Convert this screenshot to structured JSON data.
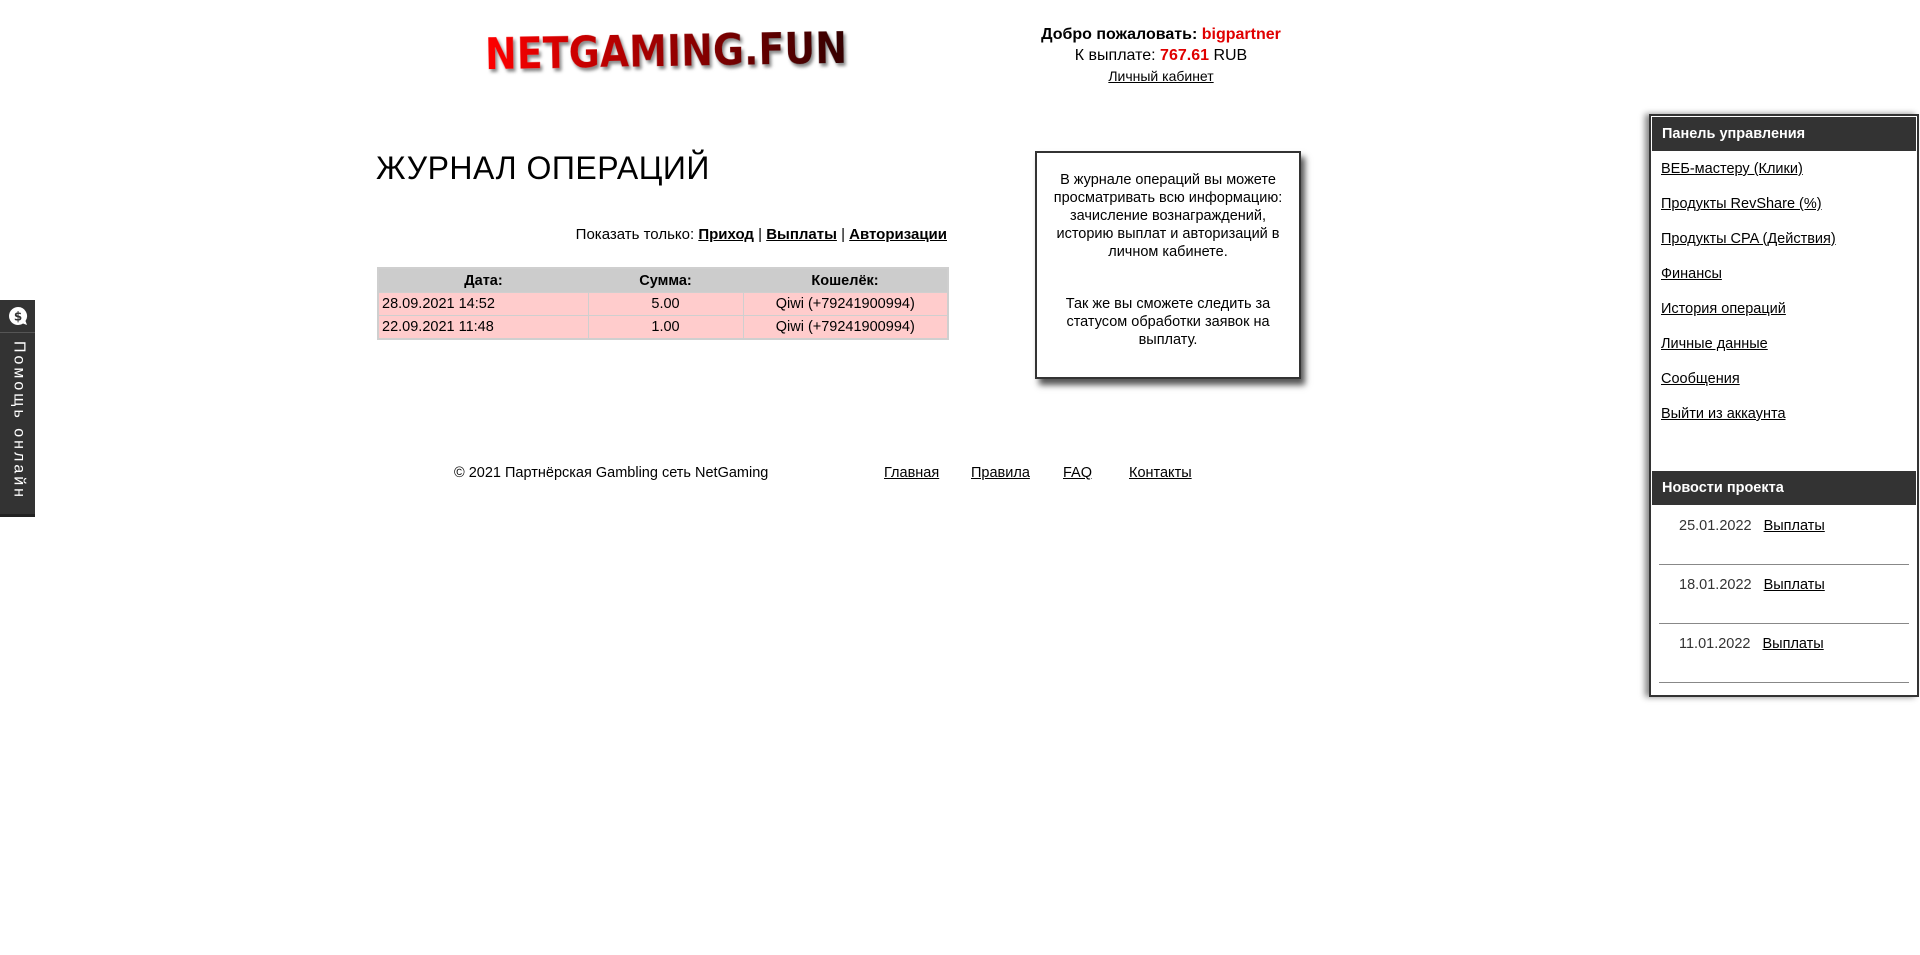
{
  "header": {
    "logo_text": "NETGAMING.FUN",
    "welcome_label": "Добро пожаловать:",
    "username": "bigpartner",
    "payout_label": "К выплате:",
    "payout_amount": "767.61",
    "payout_currency": "RUB",
    "cabinet_link": "Личный кабинет"
  },
  "main": {
    "title": "ЖУРНАЛ ОПЕРАЦИЙ",
    "filter": {
      "label": "Показать только:",
      "options": [
        "Приход",
        "Выплаты",
        "Авторизации"
      ],
      "separator": "|"
    },
    "table": {
      "columns": [
        "Дата:",
        "Сумма:",
        "Кошелёк:"
      ],
      "rows": [
        [
          "28.09.2021 14:52",
          "5.00",
          "Qiwi (+79241900994)"
        ],
        [
          "22.09.2021 11:48",
          "1.00",
          "Qiwi (+79241900994)"
        ]
      ]
    }
  },
  "info": {
    "p1": "В журнале операций вы можете просматривать всю информацию: зачисление вознаграждений, историю выплат и авторизаций в личном кабинете.",
    "p2": "Так же вы сможете следить за статусом обработки заявок на выплату."
  },
  "sidebar": {
    "panel_title": "Панель управления",
    "items": [
      "ВЕБ-мастеру (Клики)",
      "Продукты RevShare (%)",
      "Продукты CPA (Действия)",
      "Финансы",
      "История операций",
      "Личные данные",
      "Сообщения",
      "Выйти из аккаунта"
    ],
    "news_title": "Новости проекта",
    "news": [
      {
        "date": "25.01.2022",
        "title": "Выплаты"
      },
      {
        "date": "18.01.2022",
        "title": "Выплаты"
      },
      {
        "date": "11.01.2022",
        "title": "Выплаты"
      }
    ]
  },
  "help_tab": {
    "label": "Помощь онлайн",
    "icon": "chat-dollar-icon"
  },
  "footer": {
    "copyright": "© 2021 Партнёрская Gambling сеть NetGaming",
    "links": [
      "Главная",
      "Правила",
      "FAQ",
      "Контакты"
    ]
  },
  "colors": {
    "accent_red": "#e00000",
    "row_bg": "#ffcccc",
    "header_bg": "#cccccc",
    "panel_dark": "#333333"
  }
}
